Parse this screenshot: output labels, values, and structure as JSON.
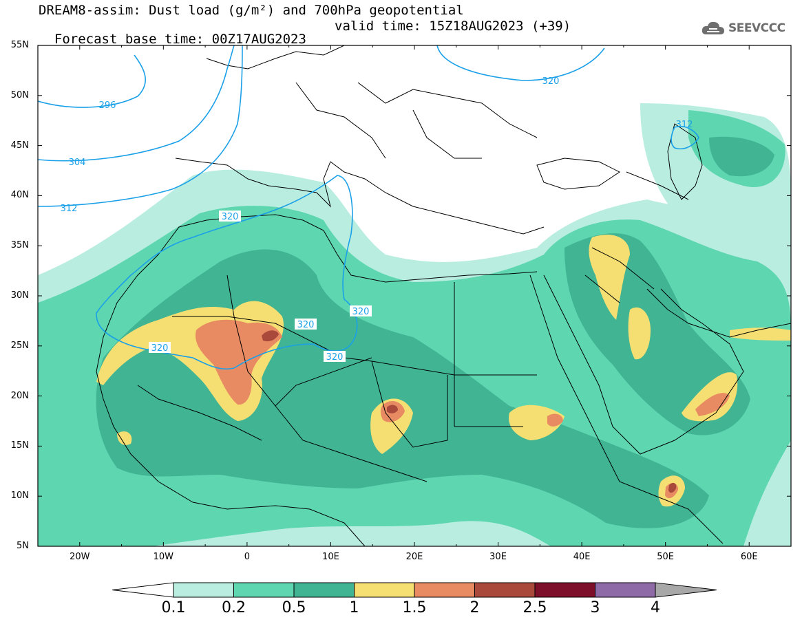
{
  "title": {
    "line1": "DREAM8-assim: Dust load (g/m²) and 700hPa geopotential",
    "line2_base": "Forecast base time: 00Z17AUG2023",
    "line2_valid": "valid time: 15Z18AUG2023 (+39)"
  },
  "logo": {
    "text": "SEEVCCC",
    "icon": "cloud-icon"
  },
  "map": {
    "lat_labels": [
      "55N",
      "50N",
      "45N",
      "40N",
      "35N",
      "30N",
      "25N",
      "20N",
      "15N",
      "10N",
      "5N"
    ],
    "lon_labels": [
      "20W",
      "10W",
      "0",
      "10E",
      "20E",
      "30E",
      "40E",
      "50E",
      "60E"
    ],
    "lon_range": [
      -25,
      65
    ],
    "lat_range": [
      5,
      55
    ],
    "contour_labels": [
      "296",
      "304",
      "312",
      "320",
      "320",
      "320",
      "320",
      "320",
      "320",
      "312"
    ]
  },
  "colorbar": {
    "levels": [
      "0.1",
      "0.2",
      "0.5",
      "1",
      "1.5",
      "2",
      "2.5",
      "3",
      "4"
    ],
    "colors": [
      "#b8ede0",
      "#5ed6b0",
      "#41b593",
      "#f5df73",
      "#e98b62",
      "#a8493c",
      "#7e0f2a",
      "#8e6aa6"
    ],
    "under_color": "#ffffff",
    "over_color": "#a8a8a8"
  }
}
